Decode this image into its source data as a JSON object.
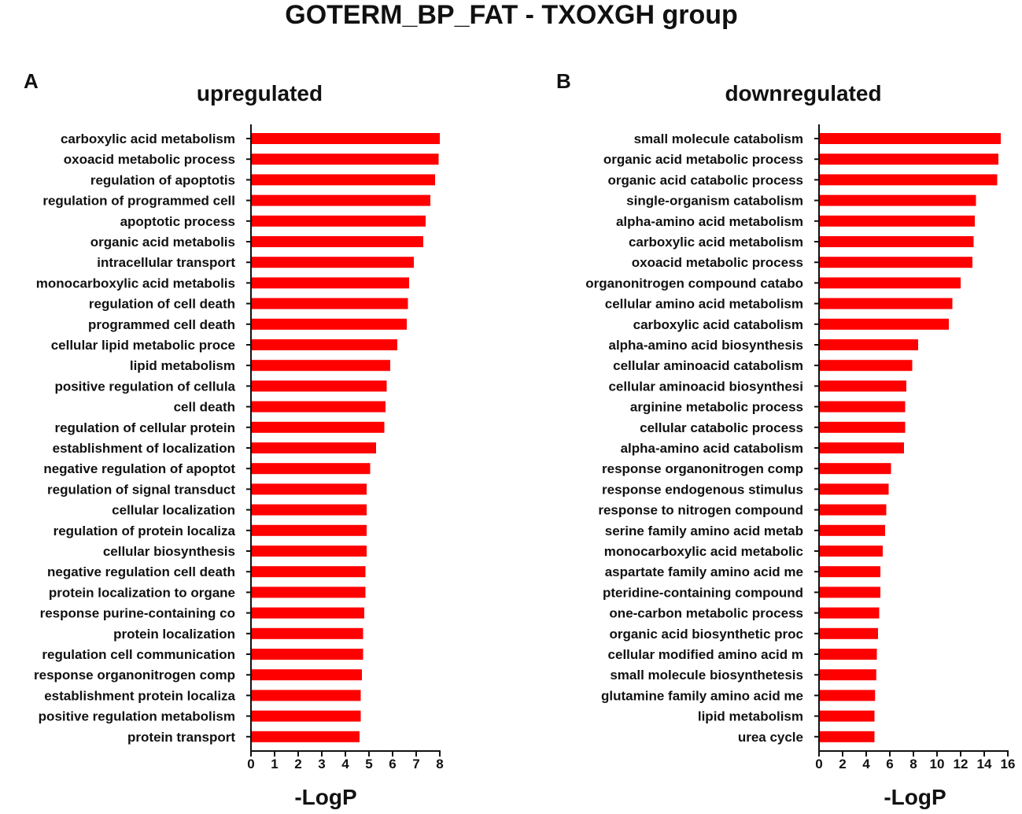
{
  "figure": {
    "title": "GOTERM_BP_FAT - TXOXGH group"
  },
  "colors": {
    "bar": "#ff0000",
    "axis": "#111111",
    "text": "#111111"
  },
  "chart_data": [
    {
      "type": "bar",
      "orientation": "horizontal",
      "panel": "A",
      "title": "upregulated",
      "xlabel": "-LogP",
      "xlim": [
        0,
        8
      ],
      "xticks": [
        0,
        1,
        2,
        3,
        4,
        5,
        6,
        7,
        8
      ],
      "categories": [
        "carboxylic acid metabolism",
        "oxoacid metabolic process",
        "regulation of apoptotis",
        "regulation of programmed cell",
        "apoptotic process",
        "organic acid metabolis",
        "intracellular transport",
        "monocarboxylic acid metabolis",
        "regulation of cell death",
        "programmed cell death",
        "cellular lipid metabolic proce",
        "lipid metabolism",
        "positive regulation of cellula",
        "cell death",
        "regulation of cellular protein",
        "establishment of localization",
        "negative regulation of apoptot",
        "regulation of signal transduct",
        "cellular localization",
        "regulation of protein localiza",
        "cellular biosynthesis",
        "negative regulation cell death",
        "protein localization to organe",
        "response purine-containing co",
        "protein localization",
        "regulation cell communication",
        "response organonitrogen comp",
        "establishment protein localiza",
        "positive regulation metabolism",
        "protein transport"
      ],
      "values": [
        8.0,
        7.95,
        7.8,
        7.6,
        7.4,
        7.3,
        6.9,
        6.7,
        6.65,
        6.6,
        6.2,
        5.9,
        5.75,
        5.7,
        5.65,
        5.3,
        5.05,
        4.9,
        4.9,
        4.9,
        4.9,
        4.85,
        4.85,
        4.8,
        4.75,
        4.75,
        4.7,
        4.65,
        4.65,
        4.6
      ]
    },
    {
      "type": "bar",
      "orientation": "horizontal",
      "panel": "B",
      "title": "downregulated",
      "xlabel": "-LogP",
      "xlim": [
        0,
        16
      ],
      "xticks": [
        0,
        2,
        4,
        6,
        8,
        10,
        12,
        14,
        16
      ],
      "categories": [
        "small molecule catabolism",
        "organic acid metabolic process",
        "organic acid catabolic process",
        "single-organism catabolism",
        "alpha-amino acid metabolism",
        "carboxylic acid metabolism",
        "oxoacid metabolic process",
        "organonitrogen compound catabo",
        "cellular amino acid metabolism",
        "carboxylic acid catabolism",
        "alpha-amino acid biosynthesis",
        "cellular aminoacid catabolism",
        "cellular aminoacid biosynthesi",
        "arginine metabolic process",
        "cellular catabolic process",
        "alpha-amino acid catabolism",
        "response organonitrogen comp",
        "response endogenous stimulus",
        "response to nitrogen compound",
        "serine family amino acid metab",
        "monocarboxylic acid metabolic",
        "aspartate family amino acid me",
        "pteridine-containing compound",
        "one-carbon metabolic process",
        "organic acid biosynthetic proc",
        "cellular modified amino acid m",
        "small molecule biosynthetesis",
        "glutamine family amino acid me",
        "lipid metabolism",
        "urea cycle"
      ],
      "values": [
        15.4,
        15.2,
        15.1,
        13.3,
        13.2,
        13.1,
        13.0,
        12.0,
        11.3,
        11.0,
        8.4,
        7.9,
        7.4,
        7.3,
        7.3,
        7.2,
        6.1,
        5.9,
        5.7,
        5.6,
        5.4,
        5.2,
        5.2,
        5.1,
        5.0,
        4.9,
        4.85,
        4.75,
        4.7,
        4.7
      ]
    }
  ]
}
